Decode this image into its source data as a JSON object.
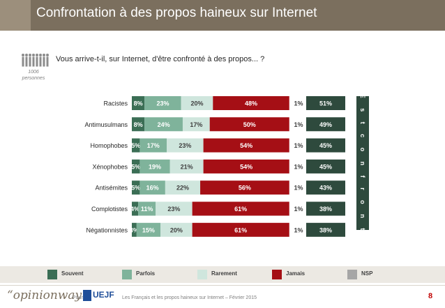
{
  "header": {
    "title": "Confrontation à des propos haineux sur Internet"
  },
  "sample": {
    "n": "1006",
    "unit": "personnes"
  },
  "question": "Vous arrive-t-il, sur Internet, d'être confronté à des propos... ?",
  "side_label": "% E s t  c o n f r o n t é",
  "legend": [
    {
      "label": "Souvent",
      "color": "#3b6e55"
    },
    {
      "label": "Parfois",
      "color": "#7fb39b"
    },
    {
      "label": "Rarement",
      "color": "#cfe6dd"
    },
    {
      "label": "Jamais",
      "color": "#a50f15"
    },
    {
      "label": "NSP",
      "color": "#a6a6a6"
    }
  ],
  "chart_data": {
    "type": "bar",
    "orientation": "horizontal",
    "stacked": true,
    "categories": [
      "Racistes",
      "Antimusulmans",
      "Homophobes",
      "Xénophobes",
      "Antisémites",
      "Complotistes",
      "Négationnistes"
    ],
    "series": [
      {
        "name": "Souvent",
        "color": "#3b6e55",
        "values": [
          8,
          8,
          5,
          5,
          5,
          4,
          3
        ],
        "labels": [
          "8%",
          "8%",
          "5%",
          "5%",
          "5%",
          "4%",
          "3%"
        ]
      },
      {
        "name": "Parfois",
        "color": "#7fb39b",
        "values": [
          23,
          24,
          17,
          19,
          16,
          11,
          15
        ],
        "labels": [
          "23%",
          "24%",
          "17%",
          "19%",
          "16%",
          "11%",
          "15%"
        ]
      },
      {
        "name": "Rarement",
        "color": "#cfe6dd",
        "values": [
          20,
          17,
          23,
          21,
          22,
          23,
          20
        ],
        "labels": [
          "20%",
          "17%",
          "23%",
          "21%",
          "22%",
          "23%",
          "20%"
        ]
      },
      {
        "name": "Jamais",
        "color": "#a50f15",
        "values": [
          48,
          50,
          54,
          54,
          56,
          61,
          61
        ],
        "labels": [
          "48%",
          "50%",
          "54%",
          "54%",
          "56%",
          "61%",
          "61%"
        ]
      },
      {
        "name": "NSP",
        "color": "#a6a6a6",
        "values": [
          1,
          1,
          1,
          1,
          1,
          1,
          1
        ],
        "labels": [
          "1%",
          "1%",
          "1%",
          "1%",
          "1%",
          "1%",
          "1%"
        ]
      }
    ],
    "total_confronted": {
      "name": "% Est confronté",
      "color": "#2e4a3d",
      "values": [
        51,
        49,
        45,
        45,
        43,
        38,
        38
      ],
      "labels": [
        "51%",
        "49%",
        "45%",
        "45%",
        "43%",
        "38%",
        "38%"
      ]
    },
    "xlim": [
      0,
      100
    ]
  },
  "footer": {
    "logo": "“opinionway",
    "pour": "Pour",
    "client": "UEJF",
    "text": "Les Français et les propos haineux sur Internet – Février 2015",
    "page": "8"
  }
}
